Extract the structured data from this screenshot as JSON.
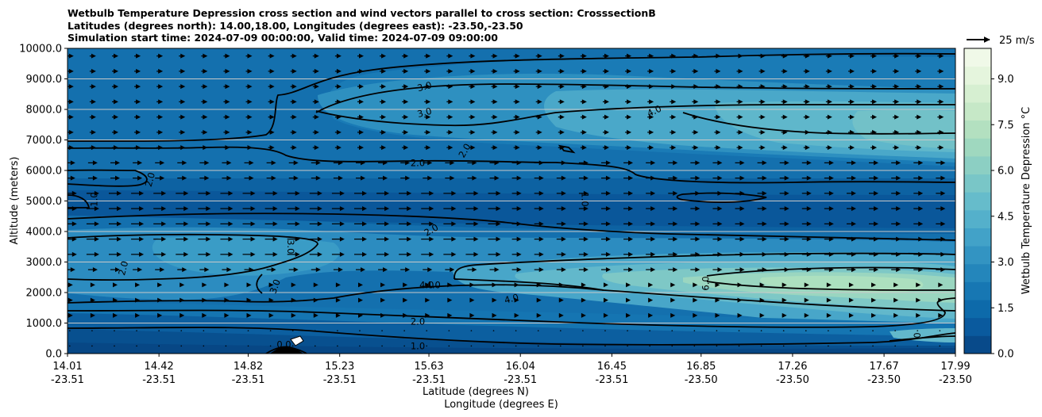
{
  "chart_data": {
    "type": "contourf",
    "title_lines": [
      "Wetbulb Temperature Depression cross section and wind vectors parallel to cross section: CrosssectionB",
      "Latitudes (degrees north): 14.00,18.00, Longitudes (degrees east): -23.50,-23.50",
      "Simulation start time: 2024-07-09 00:00:00, Valid time: 2024-07-09 09:00:00"
    ],
    "ylabel": "Altitude (meters)",
    "xlabel_lat": "Latitude (degrees N)",
    "xlabel_lon": "Longitude (degrees E)",
    "ylim": [
      0,
      10000
    ],
    "y_ticks": [
      "0.0",
      "1000.0",
      "2000.0",
      "3000.0",
      "4000.0",
      "5000.0",
      "6000.0",
      "7000.0",
      "8000.0",
      "9000.0",
      "10000.0"
    ],
    "x_ticks": [
      {
        "lat": "14.01",
        "lon": "-23.51"
      },
      {
        "lat": "14.42",
        "lon": "-23.51"
      },
      {
        "lat": "14.82",
        "lon": "-23.51"
      },
      {
        "lat": "15.23",
        "lon": "-23.51"
      },
      {
        "lat": "15.63",
        "lon": "-23.51"
      },
      {
        "lat": "16.04",
        "lon": "-23.51"
      },
      {
        "lat": "16.45",
        "lon": "-23.51"
      },
      {
        "lat": "16.85",
        "lon": "-23.50"
      },
      {
        "lat": "17.26",
        "lon": "-23.50"
      },
      {
        "lat": "17.67",
        "lon": "-23.50"
      },
      {
        "lat": "17.99",
        "lon": "-23.50"
      }
    ],
    "colorbar": {
      "label": "Wetbulb Temperature Depression °C",
      "ticks": [
        "0.0",
        "1.5",
        "3.0",
        "4.5",
        "6.0",
        "7.5",
        "9.0"
      ],
      "range": [
        0,
        10
      ],
      "colors": [
        "#084a8a",
        "#0a5a9e",
        "#0d6aaa",
        "#1777b3",
        "#2486bb",
        "#3394c2",
        "#42a2c8",
        "#54b0cb",
        "#66bccb",
        "#79c6c7",
        "#8ccfc3",
        "#9fd8bf",
        "#b3e0c0",
        "#c6e8c7",
        "#d6efd1",
        "#e5f5dd",
        "#f0f9e8"
      ]
    },
    "wind_key": {
      "label": "25 m/s",
      "speed": 25
    },
    "contour_labels": [
      {
        "text": "3.0",
        "lat": 15.61,
        "alt": 8750,
        "rot": -15
      },
      {
        "text": "3.0",
        "lat": 15.61,
        "alt": 7900,
        "rot": -15
      },
      {
        "text": "4.0",
        "lat": 16.64,
        "alt": 7950,
        "rot": -25
      },
      {
        "text": "2.0",
        "lat": 15.79,
        "alt": 6650,
        "rot": -60
      },
      {
        "text": "2.0",
        "lat": 15.58,
        "alt": 6250,
        "rot": 0
      },
      {
        "text": "2.0",
        "lat": 14.38,
        "alt": 5700,
        "rot": -75
      },
      {
        "text": "1.0",
        "lat": 14.13,
        "alt": 5050,
        "rot": -90
      },
      {
        "text": "1.0",
        "lat": 16.33,
        "alt": 5050,
        "rot": 90
      },
      {
        "text": "2.0",
        "lat": 15.64,
        "alt": 4050,
        "rot": -30
      },
      {
        "text": "3.0",
        "lat": 15.01,
        "alt": 3500,
        "rot": 90
      },
      {
        "text": "2.0",
        "lat": 14.26,
        "alt": 2800,
        "rot": -75
      },
      {
        "text": "3.0",
        "lat": 14.94,
        "alt": 2200,
        "rot": -70
      },
      {
        "text": "4.0",
        "lat": 15.62,
        "alt": 2250,
        "rot": 0
      },
      {
        "text": "4.0",
        "lat": 15.65,
        "alt": 2250,
        "rot": 0
      },
      {
        "text": "4.0",
        "lat": 16.0,
        "alt": 1800,
        "rot": -15
      },
      {
        "text": "6.0",
        "lat": 16.87,
        "alt": 2300,
        "rot": -90
      },
      {
        "text": "2.0",
        "lat": 15.58,
        "alt": 1050,
        "rot": 0
      },
      {
        "text": "1.0",
        "lat": 15.58,
        "alt": 250,
        "rot": 0
      },
      {
        "text": "0.0",
        "lat": 14.98,
        "alt": 300,
        "rot": 0
      },
      {
        "text": "0",
        "lat": 17.82,
        "alt": 600,
        "rot": -90
      }
    ]
  }
}
